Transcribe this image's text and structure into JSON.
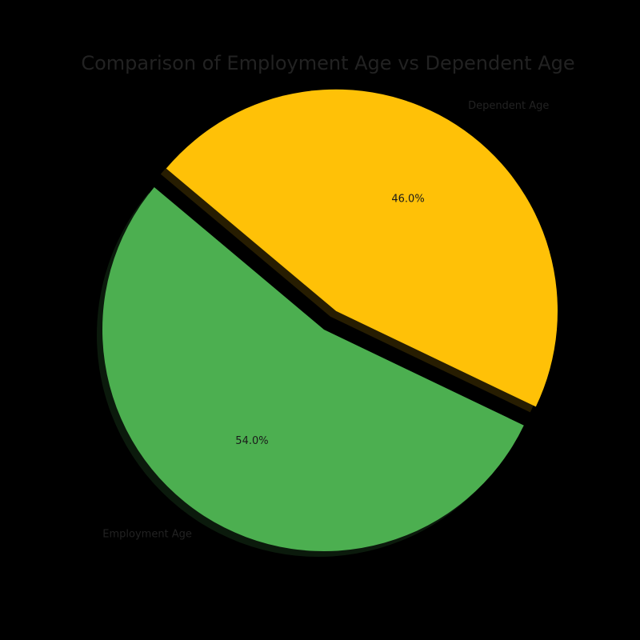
{
  "chart_data": {
    "type": "pie",
    "title": "Comparison of Employment Age vs Dependent Age",
    "slices": [
      {
        "label": "Employment Age",
        "value": 54.0,
        "pct_label": "54.0%",
        "color": "#4CAF50",
        "exploded": false
      },
      {
        "label": "Dependent Age",
        "value": 46.0,
        "pct_label": "46.0%",
        "color": "#FFC107",
        "exploded": true
      }
    ],
    "shadow": true,
    "background_color": "#000000",
    "text_color": "#222222"
  }
}
